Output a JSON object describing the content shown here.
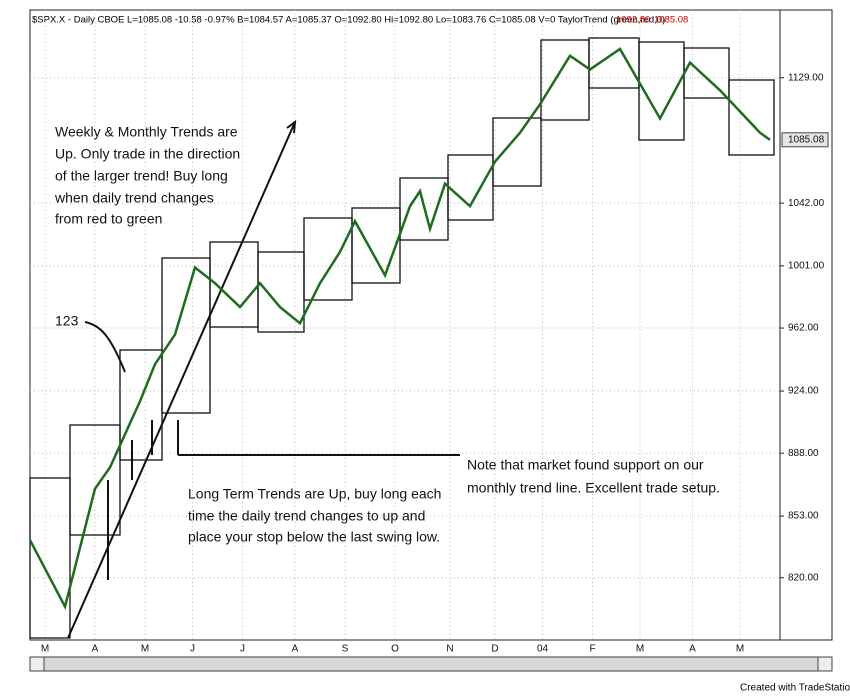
{
  "chart_data": {
    "type": "line",
    "title": "$SPX.X - Daily  CBOE  L=1085.08  -10.58  -0.97%  B=1084.57  A=1085.37  O=1092.80  Hi=1092.80  Lo=1083.76  C=1085.08  V=0  TaylorTrend (green,red,0)",
    "title_values": [
      "1092.80",
      "1085.08"
    ],
    "x": [
      0,
      2.8,
      5.2,
      6.4,
      8.8,
      10,
      11.6,
      13.2,
      14.8,
      16.8,
      18.4,
      20,
      21.6,
      23.2,
      24.8,
      26,
      28.4,
      30.4,
      31.2,
      32,
      33.2,
      35.2,
      37.2,
      39.2,
      40.8,
      43.2,
      44.8,
      47.2,
      50.4,
      52.8,
      55.2,
      58.4,
      59.2
    ],
    "values": [
      840,
      805,
      868,
      880,
      918,
      940,
      958,
      1000,
      990,
      975,
      990,
      975,
      965,
      990,
      1010,
      1030,
      995,
      1040,
      1050,
      1025,
      1055,
      1040,
      1070,
      1090,
      1110,
      1145,
      1135,
      1150,
      1100,
      1140,
      1120,
      1090,
      1085
    ],
    "color": "#1f6b1f",
    "log_scale": true,
    "ylim": [
      788,
      1179
    ],
    "yticks": [
      {
        "value": 820,
        "label": "820.00"
      },
      {
        "value": 853,
        "label": "853.00"
      },
      {
        "value": 888,
        "label": "888.00"
      },
      {
        "value": 924,
        "label": "924.00"
      },
      {
        "value": 962,
        "label": "962.00"
      },
      {
        "value": 1001,
        "label": "1001.00"
      },
      {
        "value": 1042,
        "label": "1042.00"
      },
      {
        "value": 1129,
        "label": "1129.00"
      }
    ],
    "last_value": 1085.08,
    "grid": true,
    "xlim": [
      0,
      60
    ],
    "xticks": [
      {
        "value": 1.2,
        "label": "M"
      },
      {
        "value": 5.2,
        "label": "A"
      },
      {
        "value": 9.2,
        "label": "M"
      },
      {
        "value": 13,
        "label": "J"
      },
      {
        "value": 17,
        "label": "J"
      },
      {
        "value": 21.2,
        "label": "A"
      },
      {
        "value": 25.2,
        "label": "S"
      },
      {
        "value": 29.2,
        "label": "O"
      },
      {
        "value": 33.6,
        "label": "N"
      },
      {
        "value": 37.2,
        "label": "D"
      },
      {
        "value": 41,
        "label": "04"
      },
      {
        "value": 45,
        "label": "F"
      },
      {
        "value": 48.8,
        "label": "M"
      },
      {
        "value": 53,
        "label": "A"
      },
      {
        "value": 56.8,
        "label": "M"
      }
    ],
    "annotations": [
      "Weekly & Monthly Trends are",
      "Up. Only trade in the direction",
      "of the larger trend! Buy long",
      "when daily trend changes",
      "from red to green",
      "123",
      "Note that market found support on our",
      "monthly trend line. Excellent trade setup.",
      "Long Term Trends are Up, buy long each",
      "time the daily trend changes to up and",
      "place your stop below the last swing low."
    ],
    "footer": "Created with TradeStation"
  }
}
